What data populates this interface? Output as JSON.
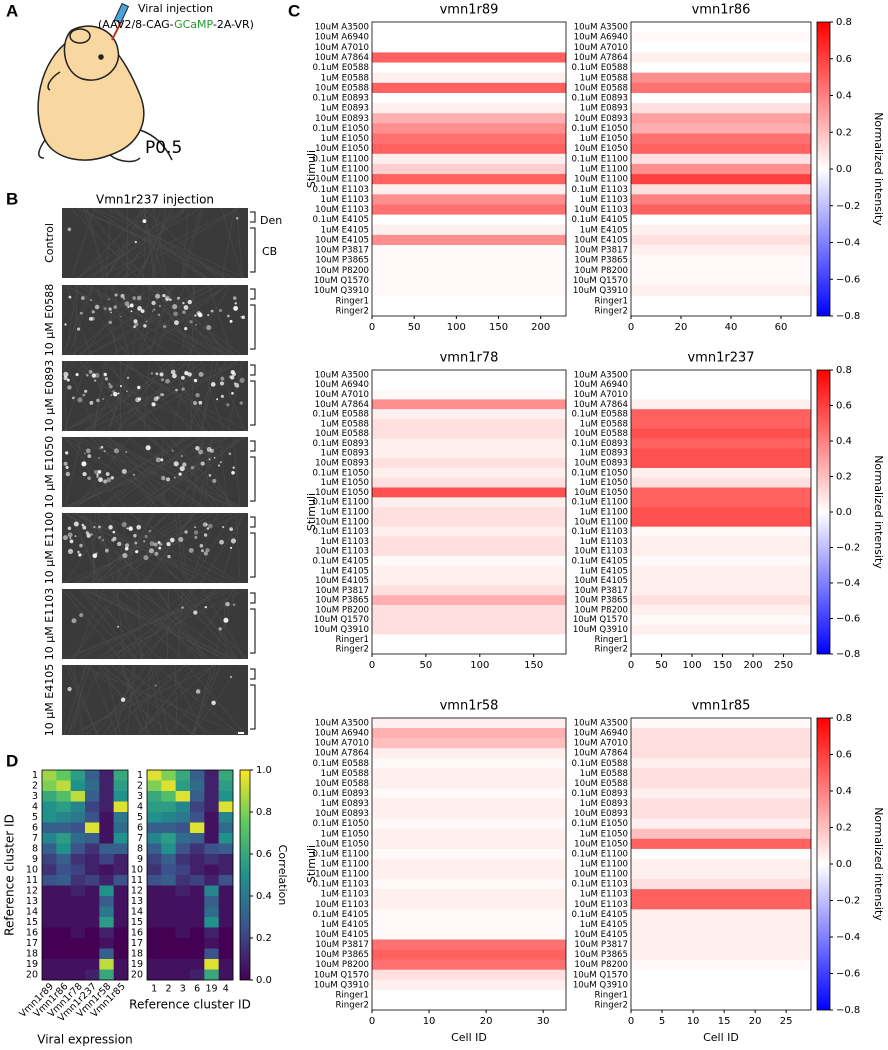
{
  "panels": {
    "A": {
      "letter": "A",
      "injection": "Viral injection",
      "construct_pre": "(AAV2/8-CAG-",
      "construct_gcamp": "GCaMP",
      "construct_post": "-2A-VR)",
      "age": "P0.5"
    },
    "B": {
      "letter": "B",
      "title": "Vmn1r237 injection",
      "conditions": [
        "Control",
        "10 μM E0588",
        "10 μM E0893",
        "10 μM E1050",
        "10 μM E1100",
        "10 μM E1103",
        "10 μM E4105"
      ],
      "den": "Den",
      "cb": "CB"
    },
    "C": {
      "letter": "C"
    },
    "D": {
      "letter": "D"
    }
  },
  "chart_data": [
    {
      "type": "heatmap",
      "title": "vmn1r89",
      "ylabel": "Stimuli",
      "colormap": "bwr",
      "rows": [
        "10uM A3500",
        "10uM A6940",
        "10uM A7010",
        "10uM A7864",
        "0.1uM E0588",
        "1uM E0588",
        "10uM E0588",
        "0.1uM E0893",
        "1uM E0893",
        "10uM E0893",
        "0.1uM E1050",
        "1uM E1050",
        "10uM E1050",
        "0.1uM E1100",
        "1uM E1100",
        "10uM E1100",
        "0.1uM E1103",
        "1uM E1103",
        "10uM E1103",
        "0.1uM E4105",
        "1uM E4105",
        "10uM E4105",
        "10uM P3817",
        "10uM P3865",
        "10uM P8200",
        "10uM Q1570",
        "10uM Q3910",
        "Ringer1",
        "Ringer2"
      ],
      "values": [
        0,
        0,
        0,
        0.5,
        0,
        0.05,
        0.5,
        0,
        0.05,
        0.25,
        0.35,
        0.45,
        0.5,
        0.05,
        0.15,
        0.5,
        0.05,
        0.35,
        0.45,
        0,
        0.05,
        0.35,
        0.02,
        0.02,
        0.02,
        0.02,
        0.02,
        0,
        0
      ],
      "xlim": [
        0,
        230
      ],
      "xticks": [
        0,
        50,
        100,
        150,
        200
      ]
    },
    {
      "type": "heatmap",
      "title": "vmn1r86",
      "colormap": "bwr",
      "rows": [
        "10uM A3500",
        "10uM A6940",
        "10uM A7010",
        "10uM A7864",
        "0.1uM E0588",
        "1uM E0588",
        "10uM E0588",
        "0.1uM E0893",
        "1uM E0893",
        "10uM E0893",
        "0.1uM E1050",
        "1uM E1050",
        "10uM E1050",
        "0.1uM E1100",
        "1uM E1100",
        "10uM E1100",
        "0.1uM E1103",
        "1uM E1103",
        "10uM E1103",
        "0.1uM E4105",
        "1uM E4105",
        "10uM E4105",
        "10uM P3817",
        "10uM P3865",
        "10uM P8200",
        "10uM Q1570",
        "10uM Q3910",
        "Ringer1",
        "Ringer2"
      ],
      "values": [
        0,
        0.02,
        0,
        0.05,
        0,
        0.35,
        0.45,
        0,
        0.1,
        0.3,
        0.25,
        0.45,
        0.5,
        0.1,
        0.35,
        0.6,
        0.1,
        0.4,
        0.5,
        0,
        0.05,
        0.1,
        0.05,
        0.02,
        0.02,
        0.02,
        0.05,
        0,
        0
      ],
      "xlim": [
        0,
        72
      ],
      "xticks": [
        0,
        20,
        40,
        60
      ],
      "colorbar": {
        "label": "Normalized intensity",
        "zlim": [
          -0.8,
          0.8
        ],
        "zticks": [
          0.8,
          0.6,
          0.4,
          0.2,
          {
            "value": 0,
            "label": "0.0"
          },
          {
            "value": -0.2,
            "label": "−0.2"
          },
          {
            "value": -0.4,
            "label": "−0.4"
          },
          {
            "value": -0.6,
            "label": "−0.6"
          },
          {
            "value": -0.8,
            "label": "−0.8"
          }
        ]
      }
    },
    {
      "type": "heatmap",
      "title": "vmn1r78",
      "ylabel": "Stimuli",
      "colormap": "bwr",
      "rows": [
        "10uM A3500",
        "10uM A6940",
        "10uM A7010",
        "10uM A7864",
        "0.1uM E0588",
        "1uM E0588",
        "10uM E0588",
        "0.1uM E0893",
        "1uM E0893",
        "10uM E0893",
        "0.1uM E1050",
        "1uM E1050",
        "10uM E1050",
        "0.1uM E1100",
        "1uM E1100",
        "10uM E1100",
        "0.1uM E1103",
        "1uM E1103",
        "10uM E1103",
        "0.1uM E4105",
        "1uM E4105",
        "10uM E4105",
        "10uM P3817",
        "10uM P3865",
        "10uM P8200",
        "10uM Q1570",
        "10uM Q3910",
        "Ringer1",
        "Ringer2"
      ],
      "values": [
        0,
        0,
        0.02,
        0.35,
        0.05,
        0.1,
        0.1,
        0.05,
        0.05,
        0.1,
        0.05,
        0.1,
        0.55,
        0.05,
        0.1,
        0.1,
        0.05,
        0.1,
        0.1,
        0.02,
        0.05,
        0.05,
        0.1,
        0.25,
        0.1,
        0.1,
        0.1,
        0,
        0
      ],
      "xlim": [
        0,
        180
      ],
      "xticks": [
        0,
        50,
        100,
        150
      ]
    },
    {
      "type": "heatmap",
      "title": "vmn1r237",
      "colormap": "bwr",
      "rows": [
        "10uM A3500",
        "10uM A6940",
        "10uM A7010",
        "10uM A7864",
        "0.1uM E0588",
        "1uM E0588",
        "10uM E0588",
        "0.1uM E0893",
        "1uM E0893",
        "10uM E0893",
        "0.1uM E1050",
        "1uM E1050",
        "10uM E1050",
        "0.1uM E1100",
        "1uM E1100",
        "10uM E1100",
        "0.1uM E1103",
        "1uM E1103",
        "10uM E1103",
        "0.1uM E4105",
        "1uM E4105",
        "10uM E4105",
        "10uM P3817",
        "10uM P3865",
        "10uM P8200",
        "10uM Q1570",
        "10uM Q3910",
        "Ringer1",
        "Ringer2"
      ],
      "values": [
        0,
        0,
        0,
        0.05,
        0.5,
        0.5,
        0.55,
        0.5,
        0.55,
        0.55,
        0.05,
        0.1,
        0.5,
        0.5,
        0.55,
        0.55,
        0.02,
        0.05,
        0.05,
        0.02,
        0.05,
        0.05,
        0.05,
        0.1,
        0.05,
        0.02,
        0.05,
        0,
        0
      ],
      "xlim": [
        0,
        295
      ],
      "xticks": [
        0,
        50,
        100,
        150,
        200,
        250
      ],
      "colorbar": {
        "label": "Normalized intensity",
        "zlim": [
          -0.8,
          0.8
        ],
        "zticks": [
          0.8,
          0.6,
          0.4,
          0.2,
          {
            "value": 0,
            "label": "0.0"
          },
          {
            "value": -0.2,
            "label": "−0.2"
          },
          {
            "value": -0.4,
            "label": "−0.4"
          },
          {
            "value": -0.6,
            "label": "−0.6"
          },
          {
            "value": -0.8,
            "label": "−0.8"
          }
        ]
      }
    },
    {
      "type": "heatmap",
      "title": "vmn1r58",
      "ylabel": "Stimuli",
      "xlabel": "Cell ID",
      "colormap": "bwr",
      "rows": [
        "10uM A3500",
        "10uM A6940",
        "10uM A7010",
        "10uM A7864",
        "0.1uM E0588",
        "1uM E0588",
        "10uM E0588",
        "0.1uM E0893",
        "1uM E0893",
        "10uM E0893",
        "0.1uM E1050",
        "1uM E1050",
        "10uM E1050",
        "0.1uM E1100",
        "1uM E1100",
        "10uM E1100",
        "0.1uM E1103",
        "1uM E1103",
        "10uM E1103",
        "0.1uM E4105",
        "1uM E4105",
        "10uM E4105",
        "10uM P3817",
        "10uM P3865",
        "10uM P8200",
        "10uM Q1570",
        "10uM Q3910",
        "Ringer1",
        "Ringer2"
      ],
      "values": [
        0.05,
        0.25,
        0.2,
        0.05,
        0.02,
        0.05,
        0.05,
        0.02,
        0.05,
        0.05,
        0.02,
        0.05,
        0.05,
        0.02,
        0.05,
        0.05,
        0.02,
        0.05,
        0.05,
        0.02,
        0.02,
        0.02,
        0.45,
        0.5,
        0.45,
        0.1,
        0.05,
        0,
        0
      ],
      "xlim": [
        0,
        34
      ],
      "xticks": [
        0,
        10,
        20,
        30
      ]
    },
    {
      "type": "heatmap",
      "title": "vmn1r85",
      "xlabel": "Cell ID",
      "colormap": "bwr",
      "rows": [
        "10uM A3500",
        "10uM A6940",
        "10uM A7010",
        "10uM A7864",
        "0.1uM E0588",
        "1uM E0588",
        "10uM E0588",
        "0.1uM E0893",
        "1uM E0893",
        "10uM E0893",
        "0.1uM E1050",
        "1uM E1050",
        "10uM E1050",
        "0.1uM E1100",
        "1uM E1100",
        "10uM E1100",
        "0.1uM E1103",
        "1uM E1103",
        "10uM E1103",
        "0.1uM E4105",
        "1uM E4105",
        "10uM E4105",
        "10uM P3817",
        "10uM P3865",
        "10uM P8200",
        "10uM Q1570",
        "10uM Q3910",
        "Ringer1",
        "Ringer2"
      ],
      "values": [
        0.02,
        0.1,
        0.1,
        0.1,
        0.05,
        0.1,
        0.1,
        0.05,
        0.1,
        0.1,
        0.05,
        0.2,
        0.5,
        0,
        0.05,
        0.05,
        0.1,
        0.5,
        0.5,
        0.05,
        0.05,
        0.05,
        0.05,
        0.05,
        0.02,
        0,
        0,
        0,
        0
      ],
      "xlim": [
        0,
        29
      ],
      "xticks": [
        0,
        5,
        10,
        15,
        20,
        25
      ],
      "colorbar": {
        "label": "Normalized intensity",
        "zlim": [
          -0.8,
          0.8
        ],
        "zticks": [
          0.8,
          0.6,
          0.4,
          0.2,
          {
            "value": 0,
            "label": "0.0"
          },
          {
            "value": -0.2,
            "label": "−0.2"
          },
          {
            "value": -0.4,
            "label": "−0.4"
          },
          {
            "value": -0.6,
            "label": "−0.6"
          },
          {
            "value": -0.8,
            "label": "−0.8"
          }
        ]
      }
    },
    {
      "type": "matrix",
      "ylabel": "Reference cluster ID",
      "xlabel": "Viral expression",
      "colormap": "viridis",
      "rows": [
        "1",
        "2",
        "3",
        "4",
        "5",
        "6",
        "7",
        "8",
        "9",
        "10",
        "11",
        "12",
        "13",
        "14",
        "15",
        "16",
        "17",
        "18",
        "19",
        "20"
      ],
      "columns": [
        "Vmn1r89",
        "Vmn1r86",
        "Vmn1r78",
        "Vmn1r237",
        "Vmn1r58",
        "Vmn1r85"
      ],
      "values": [
        [
          0.85,
          0.75,
          0.55,
          0.3,
          0.1,
          0.6
        ],
        [
          0.8,
          0.9,
          0.5,
          0.35,
          0.1,
          0.55
        ],
        [
          0.6,
          0.7,
          0.9,
          0.3,
          0.1,
          0.5
        ],
        [
          0.5,
          0.55,
          0.45,
          0.2,
          0.1,
          0.95
        ],
        [
          0.5,
          0.45,
          0.4,
          0.25,
          0.05,
          0.4
        ],
        [
          0.3,
          0.3,
          0.25,
          0.95,
          0.05,
          0.35
        ],
        [
          0.45,
          0.55,
          0.35,
          0.3,
          0.05,
          0.5
        ],
        [
          0.3,
          0.5,
          0.25,
          0.15,
          0.3,
          0.3
        ],
        [
          0.2,
          0.3,
          0.15,
          0.1,
          0.2,
          0.1
        ],
        [
          0.15,
          0.25,
          0.2,
          0.1,
          0.05,
          0.1
        ],
        [
          0.25,
          0.3,
          0.15,
          0.2,
          0.1,
          0.25
        ],
        [
          0.05,
          0.05,
          0.1,
          0.05,
          0.5,
          0.05
        ],
        [
          0.05,
          0.05,
          0.05,
          0.05,
          0.3,
          0.05
        ],
        [
          0.05,
          0.05,
          0.05,
          0.05,
          0.4,
          0.05
        ],
        [
          0.05,
          0.05,
          0.05,
          0.05,
          0.55,
          0.05
        ],
        [
          0,
          0,
          0.05,
          0,
          0.1,
          0
        ],
        [
          0,
          0,
          0,
          0,
          0.05,
          0
        ],
        [
          0,
          0,
          0,
          0,
          0.3,
          0
        ],
        [
          0.05,
          0.05,
          0.05,
          0.05,
          0.9,
          0.05
        ],
        [
          0.05,
          0.05,
          0.05,
          0.1,
          0.6,
          0.05
        ]
      ]
    },
    {
      "type": "matrix",
      "xlabel": "Reference cluster ID",
      "colormap": "viridis",
      "rows": [
        "1",
        "2",
        "3",
        "4",
        "5",
        "6",
        "7",
        "8",
        "9",
        "10",
        "11",
        "12",
        "13",
        "14",
        "15",
        "16",
        "17",
        "18",
        "19",
        "20"
      ],
      "columns": [
        "1",
        "2",
        "3",
        "6",
        "19",
        "4"
      ],
      "values": [
        [
          0.95,
          0.8,
          0.6,
          0.3,
          0.1,
          0.6
        ],
        [
          0.8,
          0.95,
          0.55,
          0.35,
          0.1,
          0.55
        ],
        [
          0.6,
          0.7,
          0.95,
          0.3,
          0.1,
          0.5
        ],
        [
          0.55,
          0.55,
          0.45,
          0.2,
          0.1,
          0.95
        ],
        [
          0.5,
          0.45,
          0.4,
          0.25,
          0.05,
          0.45
        ],
        [
          0.3,
          0.3,
          0.25,
          0.95,
          0.05,
          0.35
        ],
        [
          0.45,
          0.55,
          0.35,
          0.3,
          0.05,
          0.5
        ],
        [
          0.3,
          0.5,
          0.25,
          0.15,
          0.25,
          0.3
        ],
        [
          0.2,
          0.3,
          0.15,
          0.1,
          0.15,
          0.1
        ],
        [
          0.15,
          0.25,
          0.2,
          0.1,
          0.05,
          0.1
        ],
        [
          0.25,
          0.3,
          0.15,
          0.2,
          0.1,
          0.25
        ],
        [
          0.05,
          0.05,
          0.1,
          0.05,
          0.45,
          0.05
        ],
        [
          0.05,
          0.05,
          0.05,
          0.05,
          0.3,
          0.05
        ],
        [
          0.05,
          0.05,
          0.05,
          0.05,
          0.35,
          0.05
        ],
        [
          0.05,
          0.05,
          0.05,
          0.05,
          0.5,
          0.05
        ],
        [
          0,
          0,
          0.05,
          0,
          0.1,
          0
        ],
        [
          0,
          0,
          0,
          0,
          0.05,
          0
        ],
        [
          0,
          0,
          0,
          0,
          0.25,
          0
        ],
        [
          0.05,
          0.05,
          0.05,
          0.05,
          0.95,
          0.05
        ],
        [
          0.05,
          0.05,
          0.05,
          0.1,
          0.6,
          0.05
        ]
      ],
      "colorbar": {
        "label": "Correlation",
        "zlim": [
          0,
          1
        ],
        "zticks": [
          {
            "value": 0,
            "label": "0.0"
          },
          0.2,
          0.4,
          0.6,
          0.8,
          {
            "value": 1,
            "label": "1.0"
          }
        ]
      }
    }
  ]
}
